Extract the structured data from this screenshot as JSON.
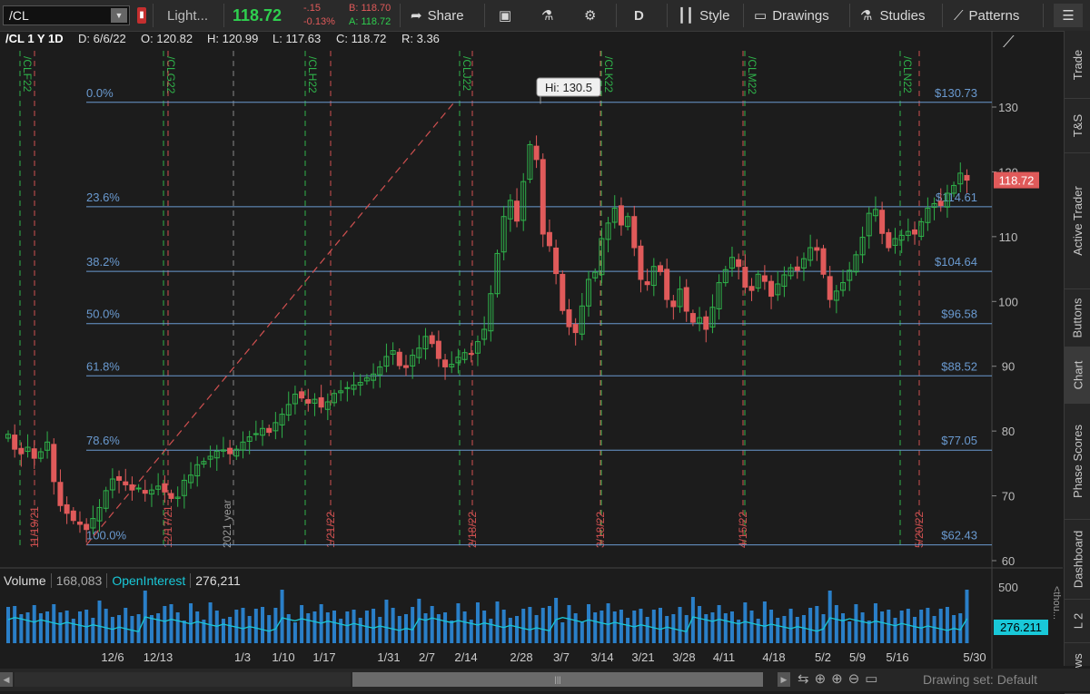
{
  "toolbar": {
    "symbol": "/CL",
    "layout": "Light...",
    "last": "118.72",
    "change": "-.15",
    "change_pct": "-0.13%",
    "bid": "B: 118.70",
    "ask": "A: 118.72",
    "share": "Share",
    "aggregation": "D",
    "style": "Style",
    "drawings": "Drawings",
    "studies": "Studies",
    "patterns": "Patterns"
  },
  "info": {
    "title": "/CL 1 Y 1D",
    "date": "D: 6/6/22",
    "open": "O: 120.82",
    "high": "H: 120.99",
    "low": "L: 117.63",
    "close": "C: 118.72",
    "range": "R: 3.36"
  },
  "colors": {
    "up": "#2fb24a",
    "down": "#e05a5a",
    "fib": "#6a9ad0",
    "bg": "#1c1c1c",
    "grid": "#3a3a3a",
    "volume": "#2a7fc8",
    "oi": "#19c8d8"
  },
  "chart_data": {
    "type": "candlestick",
    "ylim": [
      60,
      136
    ],
    "y_ticks": [
      "60",
      "70",
      "80",
      "90",
      "100",
      "110",
      "120",
      "130"
    ],
    "x_ticks": [
      "12/6",
      "12/13",
      "1/3",
      "1/10",
      "1/17",
      "1/31",
      "2/7",
      "2/14",
      "2/28",
      "3/7",
      "3/14",
      "3/21",
      "3/28",
      "4/11",
      "4/18",
      "5/2",
      "5/9",
      "5/16",
      "5/30"
    ],
    "year_label": "2021 year",
    "last_price_label": "118.72",
    "hi_callout": "Hi: 130.5",
    "fib_levels": [
      {
        "pct": "0.0%",
        "price": "$130.73",
        "value": 130.73
      },
      {
        "pct": "23.6%",
        "price": "$114.61",
        "value": 114.61
      },
      {
        "pct": "38.2%",
        "price": "$104.64",
        "value": 104.64
      },
      {
        "pct": "50.0%",
        "price": "$96.58",
        "value": 96.58
      },
      {
        "pct": "61.8%",
        "price": "$88.52",
        "value": 88.52
      },
      {
        "pct": "78.6%",
        "price": "$77.05",
        "value": 77.05
      },
      {
        "pct": "100.0%",
        "price": "$62.43",
        "value": 62.43
      }
    ],
    "contract_expirations": [
      "/CLF22",
      "/CLG22",
      "/CLH22",
      "/CLJ22",
      "/CLK22",
      "/CLM22",
      "/CLN22"
    ],
    "roll_dates": [
      "11/19/21",
      "12/17/21",
      "1/21/22",
      "2/18/22",
      "3/18/22",
      "4/15/22",
      "5/20/22"
    ],
    "closes": [
      79.5,
      77.2,
      76.5,
      77.5,
      75.8,
      76.8,
      78.3,
      72.2,
      68.5,
      67.3,
      66.2,
      65.6,
      64.8,
      66.5,
      68.2,
      70.8,
      72.6,
      72.4,
      71.7,
      70.9,
      71.2,
      70.4,
      70.9,
      71.5,
      70.6,
      69.6,
      69.8,
      72.4,
      73.2,
      74.8,
      75.3,
      76.1,
      76.9,
      77.1,
      76.5,
      77.2,
      78.3,
      79.1,
      79.6,
      80.4,
      79.8,
      81.3,
      82.6,
      84.1,
      85.7,
      85.1,
      84.3,
      84.9,
      83.7,
      84.5,
      85.8,
      86.2,
      86.7,
      87.1,
      87.5,
      88.2,
      88.8,
      89.9,
      91.5,
      92.4,
      90.1,
      89.8,
      91.7,
      92.8,
      94.6,
      93.5,
      91.2,
      89.9,
      90.3,
      91.4,
      92.1,
      91.9,
      93.8,
      95.7,
      101.2,
      107.4,
      113.1,
      115.6,
      112.4,
      118.5,
      124.2,
      121.9,
      110.4,
      108.6,
      104.3,
      98.6,
      96.1,
      95.2,
      99.3,
      103.4,
      104.5,
      109.7,
      112.1,
      114.4,
      111.8,
      113.1,
      108.3,
      103.4,
      102.6,
      105.4,
      104.6,
      100.3,
      99.2,
      101.9,
      98.5,
      96.8,
      97.5,
      95.7,
      99.1,
      102.9,
      104.9,
      106.8,
      105.4,
      102.2,
      101.7,
      104.2,
      103.1,
      100.8,
      102.7,
      104.1,
      105.2,
      104.8,
      106.6,
      108.3,
      107.9,
      104.2,
      100.3,
      101.6,
      102.9,
      104.8,
      107.2,
      109.9,
      113.6,
      114.2,
      110.5,
      108.3,
      109.7,
      110.2,
      110.8,
      110.4,
      112.3,
      114.4,
      115.1,
      114.8,
      116.7,
      117.9,
      119.8,
      118.72
    ]
  },
  "volume": {
    "label": "Volume",
    "value": "168,083",
    "oi_label": "OpenInterest",
    "oi_value": "276,211",
    "oi_tag": "276.211",
    "axis_label": "500",
    "unit": "<thou..."
  },
  "sidebar": [
    "Trade",
    "T&S",
    "Active Trader",
    "Buttons",
    "Chart",
    "Phase Scores",
    "Dashboard",
    "L 2",
    "News"
  ],
  "bottom": {
    "drawing_set": "Drawing set: Default"
  }
}
